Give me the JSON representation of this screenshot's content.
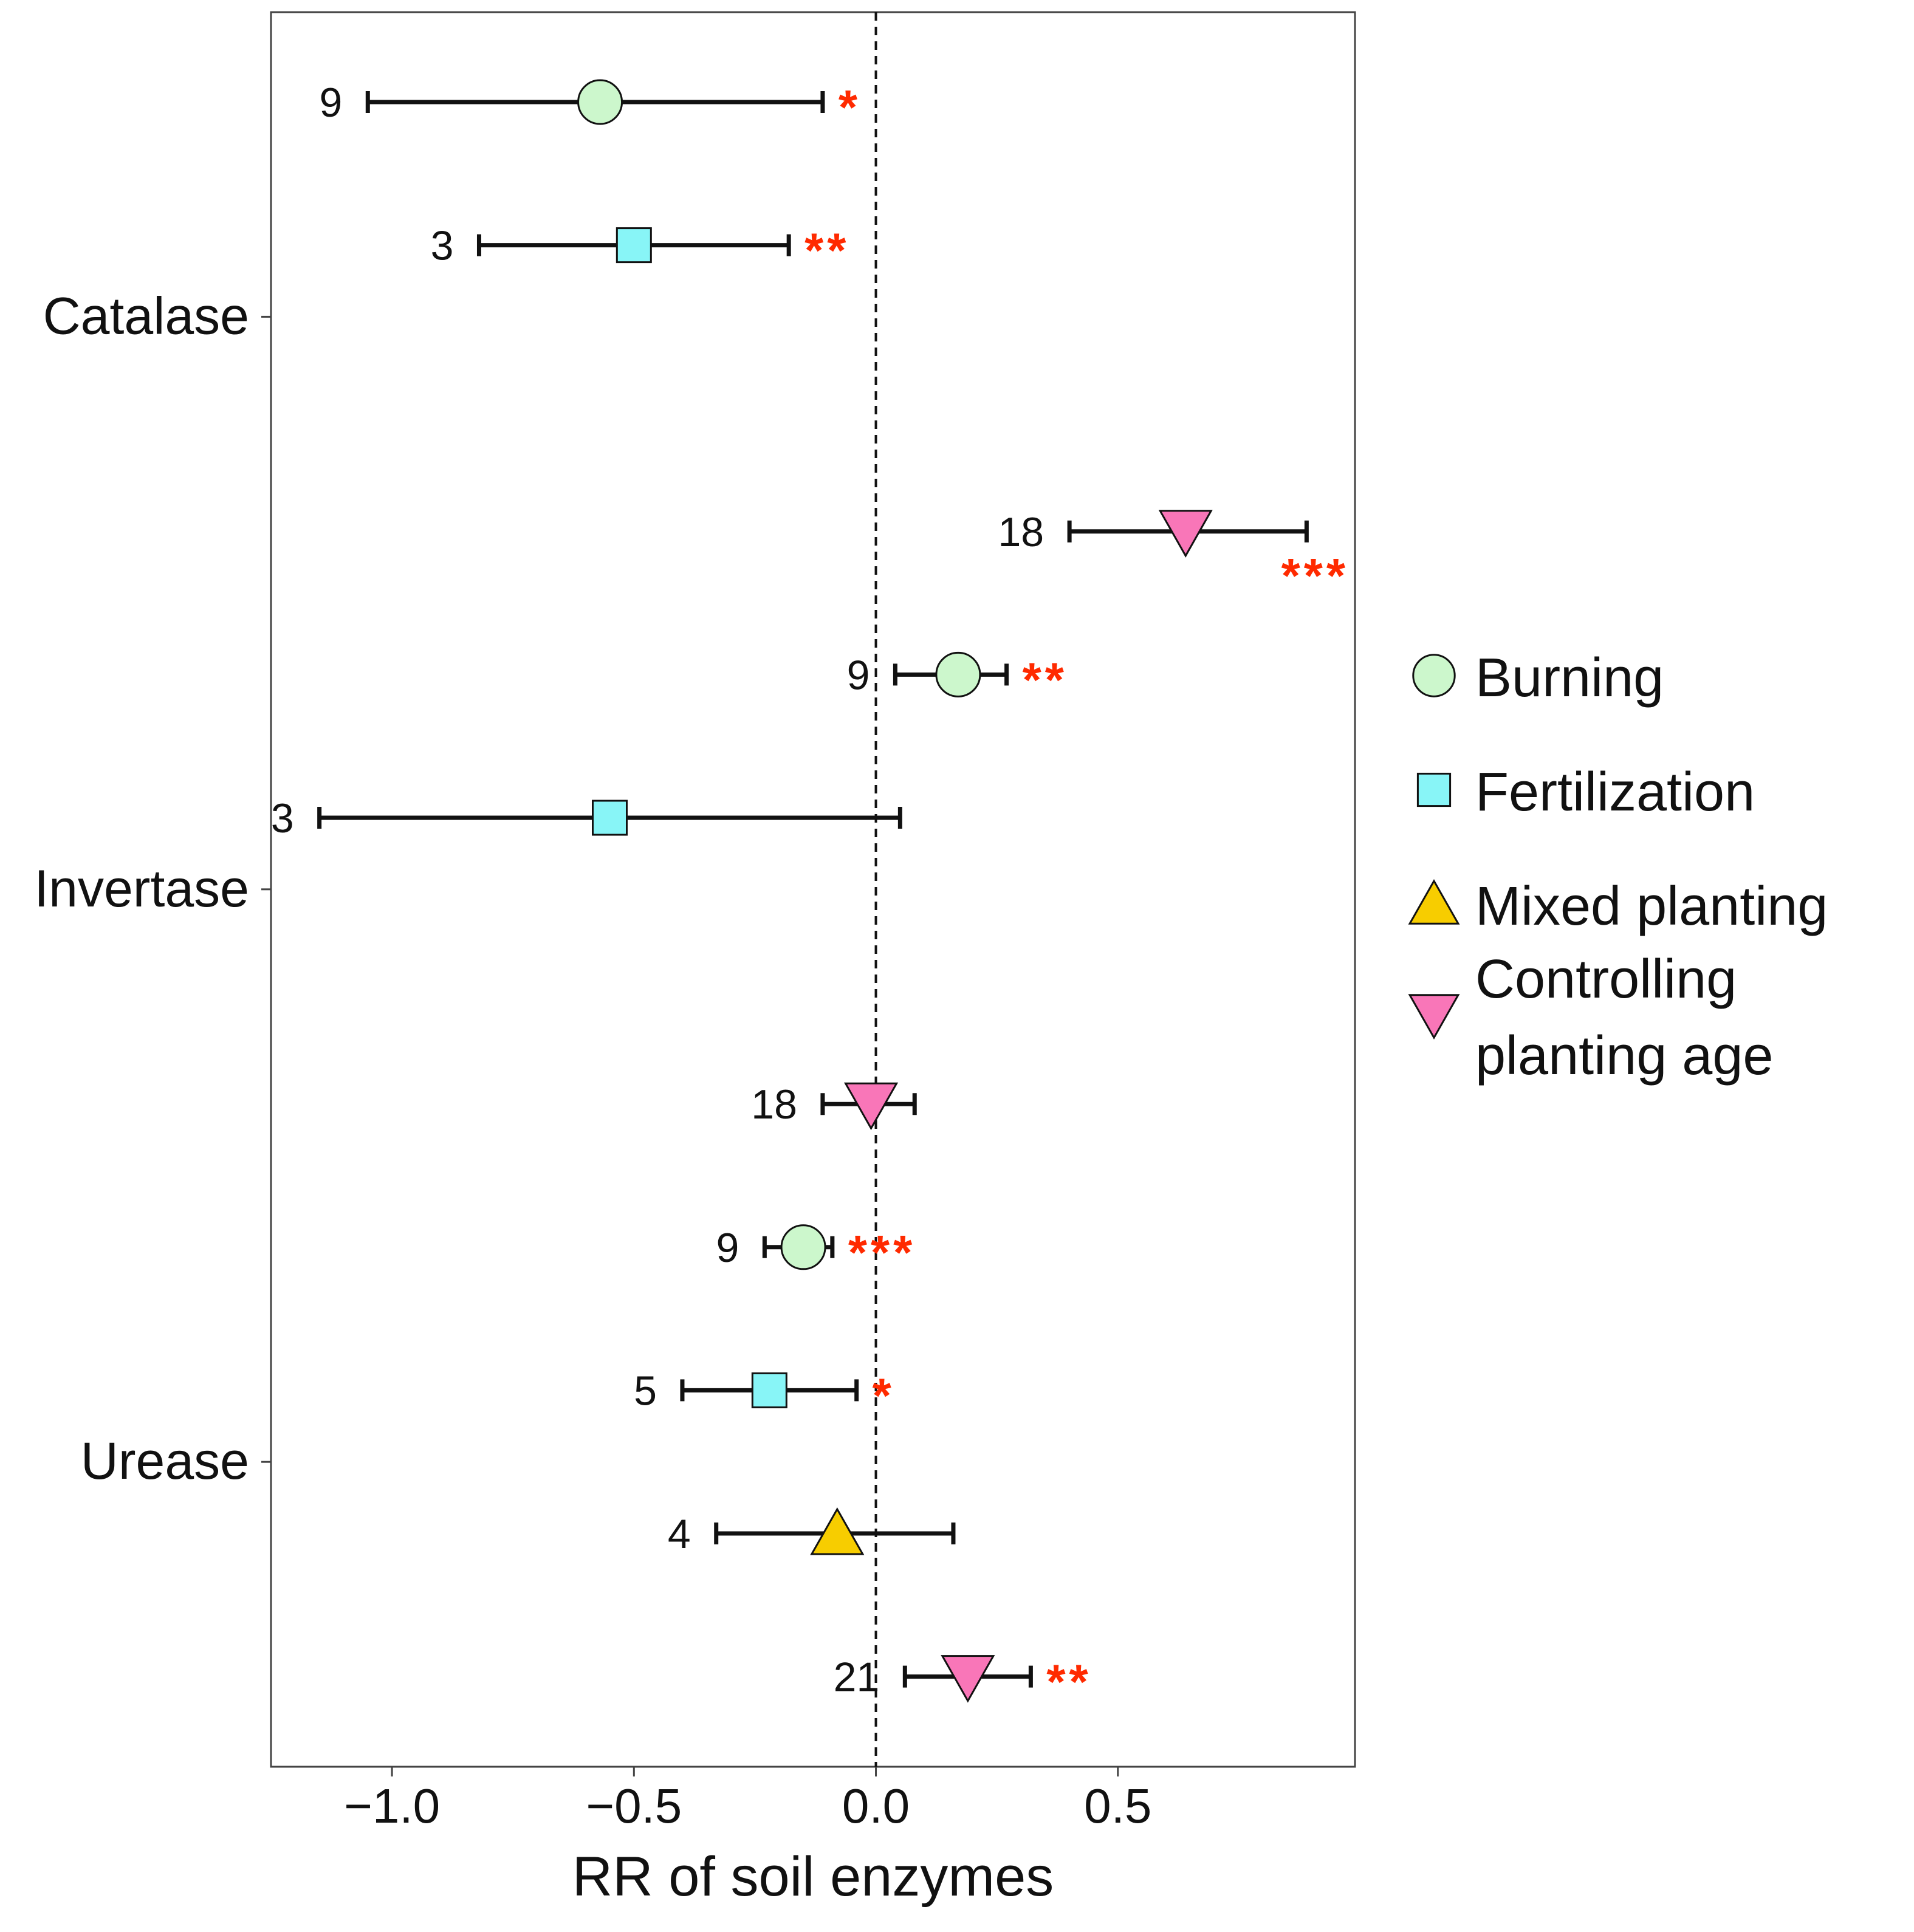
{
  "chart_data": {
    "type": "scatter",
    "subtype": "forest-plot",
    "xlabel": "RR of soil enzymes",
    "ylabel": "",
    "xlim": [
      -1.25,
      0.99
    ],
    "xticks": [
      -1.0,
      -0.5,
      0.0,
      0.5
    ],
    "xtick_labels": [
      "−1.0",
      "−0.5",
      "0.0",
      "0.5"
    ],
    "reference_line": 0.0,
    "categories": [
      "Catalase",
      "Invertase",
      "Urease"
    ],
    "grid": false,
    "legend_position": "right",
    "legend": [
      {
        "name": "Burning",
        "shape": "circle",
        "color": "#ccf7cc"
      },
      {
        "name": "Fertilization",
        "shape": "square",
        "color": "#88f5f7"
      },
      {
        "name": "Mixed planting",
        "shape": "triangle-up",
        "color": "#f7cd00"
      },
      {
        "name": "Controlling planting age",
        "name_lines": [
          "Controlling",
          "planting age"
        ],
        "shape": "triangle-down",
        "color": "#f976b8"
      }
    ],
    "sig_color": "#ff2a00",
    "points": [
      {
        "category": "Catalase",
        "treatment": "Burning",
        "mean": -0.57,
        "ci_low": -1.05,
        "ci_high": -0.11,
        "n": "9",
        "sig": "*"
      },
      {
        "category": "Catalase",
        "treatment": "Fertilization",
        "mean": -0.5,
        "ci_low": -0.82,
        "ci_high": -0.18,
        "n": "3",
        "sig": "**"
      },
      {
        "category": "Catalase",
        "treatment": "Controlling planting age",
        "mean": 0.64,
        "ci_low": 0.4,
        "ci_high": 0.89,
        "n": "18",
        "sig": "***"
      },
      {
        "category": "Invertase",
        "treatment": "Burning",
        "mean": 0.17,
        "ci_low": 0.04,
        "ci_high": 0.27,
        "n": "9",
        "sig": "**"
      },
      {
        "category": "Invertase",
        "treatment": "Fertilization",
        "mean": -0.55,
        "ci_low": -1.15,
        "ci_high": 0.05,
        "n": "3",
        "sig": ""
      },
      {
        "category": "Invertase",
        "treatment": "Controlling planting age",
        "mean": -0.01,
        "ci_low": -0.11,
        "ci_high": 0.08,
        "n": "18",
        "sig": ""
      },
      {
        "category": "Urease",
        "treatment": "Burning",
        "mean": -0.15,
        "ci_low": -0.23,
        "ci_high": -0.09,
        "n": "9",
        "sig": "***"
      },
      {
        "category": "Urease",
        "treatment": "Fertilization",
        "mean": -0.22,
        "ci_low": -0.4,
        "ci_high": -0.04,
        "n": "5",
        "sig": "*"
      },
      {
        "category": "Urease",
        "treatment": "Mixed planting",
        "mean": -0.08,
        "ci_low": -0.33,
        "ci_high": 0.16,
        "n": "4",
        "sig": ""
      },
      {
        "category": "Urease",
        "treatment": "Controlling planting age",
        "mean": 0.19,
        "ci_low": 0.06,
        "ci_high": 0.32,
        "n": "21",
        "sig": "**"
      }
    ]
  }
}
